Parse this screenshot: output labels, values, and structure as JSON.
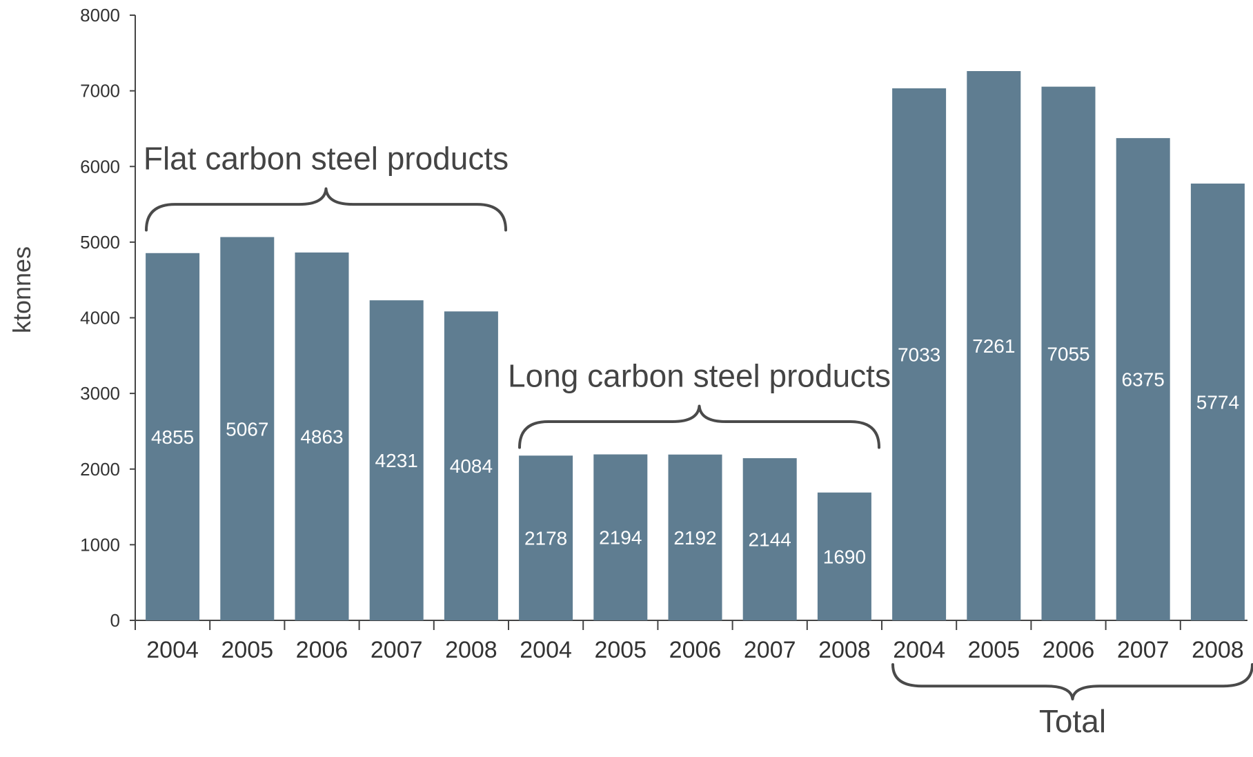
{
  "chart_data": {
    "type": "bar",
    "title": "",
    "xlabel": "",
    "ylabel": "ktonnes",
    "ylim": [
      0,
      8000
    ],
    "yticks": [
      0,
      1000,
      2000,
      3000,
      4000,
      5000,
      6000,
      7000,
      8000
    ],
    "bar_color": "#5f7d91",
    "grid": false,
    "groups": [
      {
        "name": "Flat carbon steel products",
        "categories": [
          "2004",
          "2005",
          "2006",
          "2007",
          "2008"
        ],
        "values": [
          4855,
          5067,
          4863,
          4231,
          4084
        ],
        "bracket": "above"
      },
      {
        "name": "Long carbon steel products",
        "categories": [
          "2004",
          "2005",
          "2006",
          "2007",
          "2008"
        ],
        "values": [
          2178,
          2194,
          2192,
          2144,
          1690
        ],
        "bracket": "above"
      },
      {
        "name": "Total",
        "categories": [
          "2004",
          "2005",
          "2006",
          "2007",
          "2008"
        ],
        "values": [
          7033,
          7261,
          7055,
          6375,
          5774
        ],
        "bracket": "below"
      }
    ]
  }
}
